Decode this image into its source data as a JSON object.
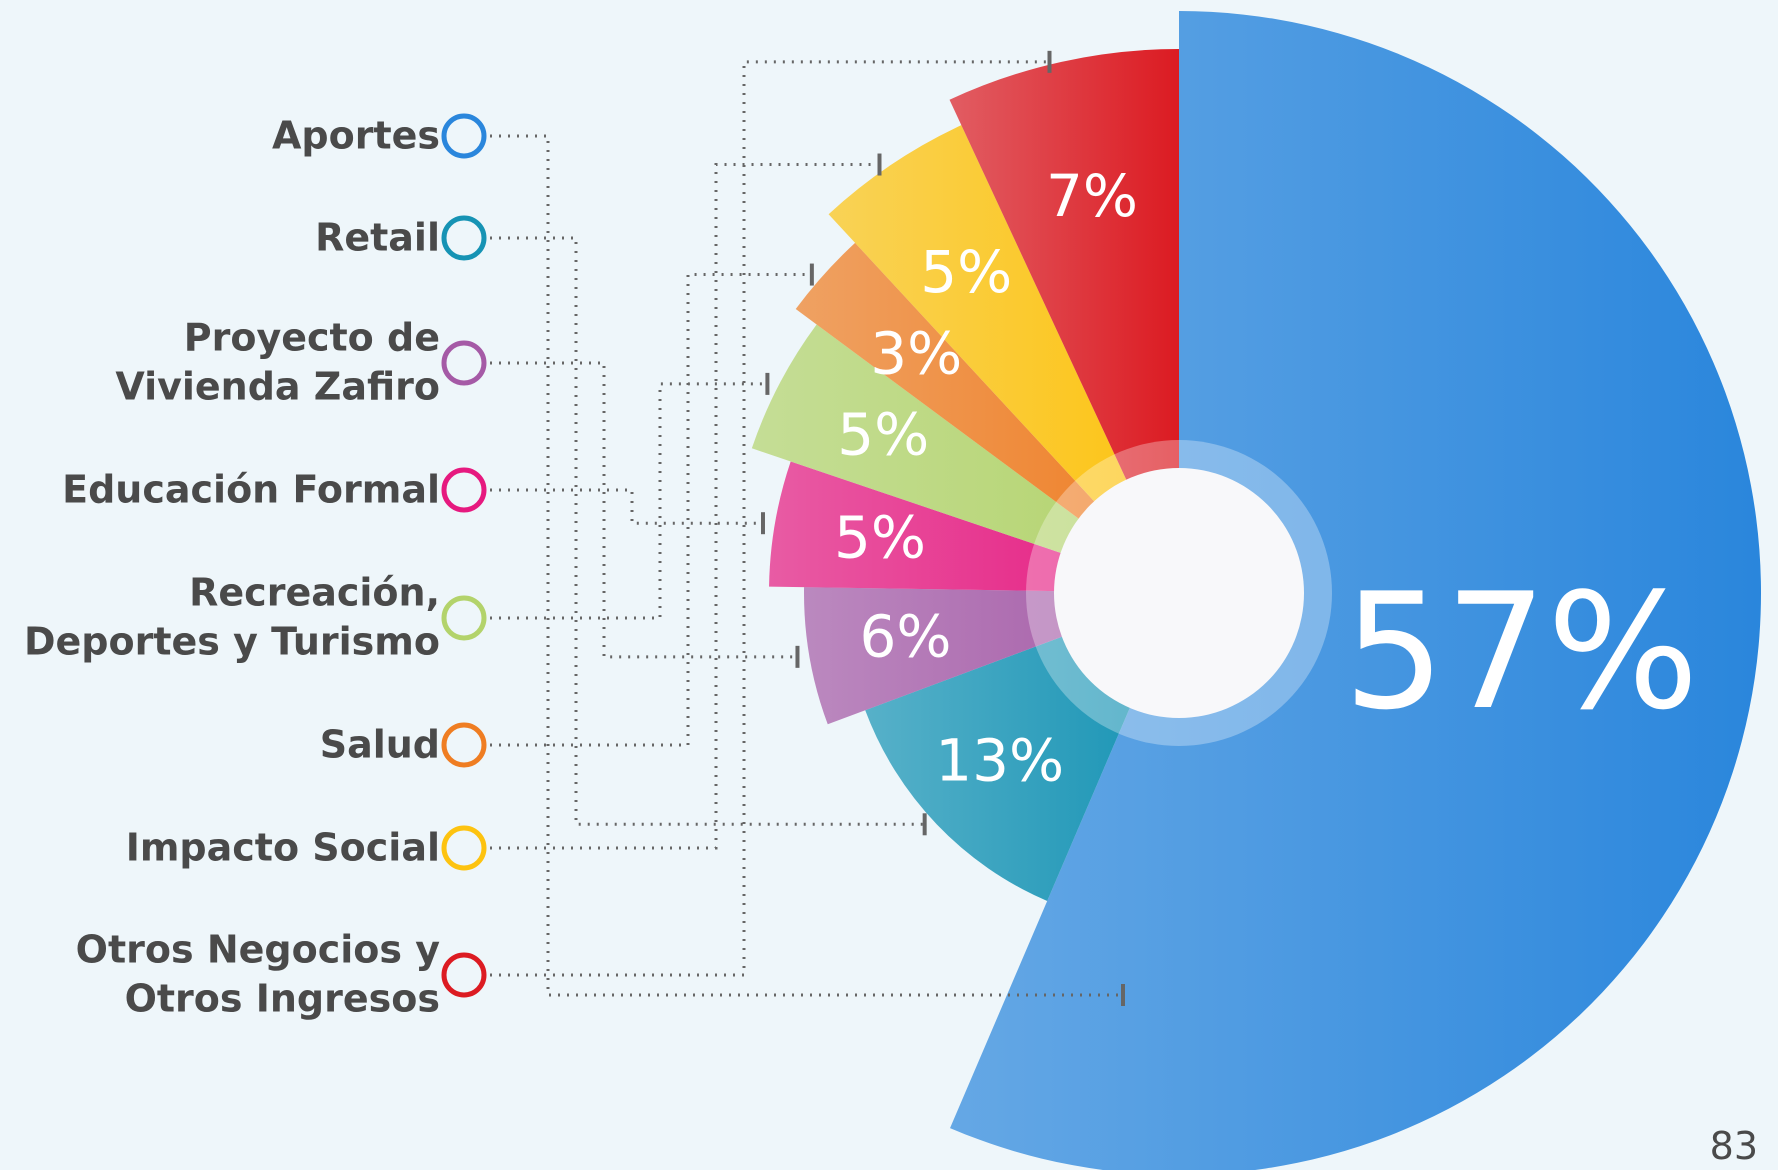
{
  "chart_data": {
    "type": "pie",
    "categories": [
      "Aportes",
      "Retail",
      "Proyecto de\nVivienda Zafiro",
      "Educación Formal",
      "Recreación,\nDeportes y Turismo",
      "Salud",
      "Impacto Social",
      "Otros Negocios y\nOtros Ingresos"
    ],
    "values": [
      57,
      13,
      6,
      5,
      5,
      3,
      5,
      7
    ],
    "value_labels": [
      "57%",
      "13%",
      "6%",
      "5%",
      "5%",
      "3%",
      "5%",
      "7%"
    ],
    "colors": [
      "#2a86dc",
      "#1693b4",
      "#a55aa6",
      "#e6197f",
      "#b3d36b",
      "#ef7d22",
      "#fdc310",
      "#dc1b22"
    ],
    "legend": "left"
  },
  "page_number": "83"
}
